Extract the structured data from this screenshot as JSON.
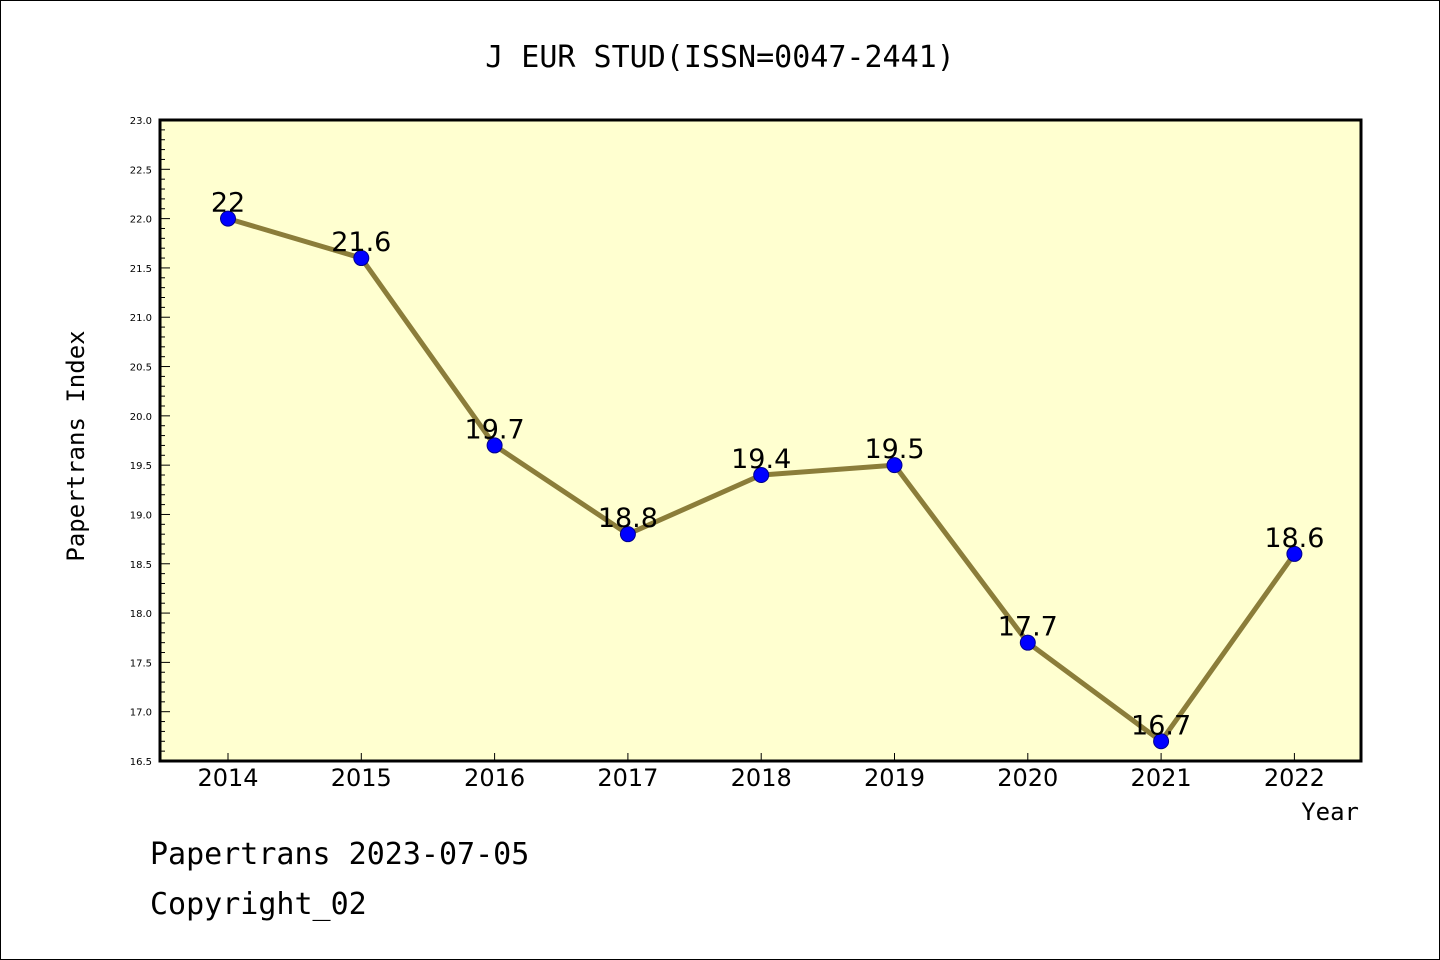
{
  "chart_data": {
    "type": "line",
    "title": "J EUR STUD(ISSN=0047-2441)",
    "xlabel": "Year",
    "ylabel": "Papertrans Index",
    "x": [
      "2014",
      "2015",
      "2016",
      "2017",
      "2018",
      "2019",
      "2020",
      "2021",
      "2022"
    ],
    "y": [
      22,
      21.6,
      19.7,
      18.8,
      19.4,
      19.5,
      17.7,
      16.7,
      18.6
    ],
    "data_labels": [
      "22",
      "21.6",
      "19.7",
      "18.8",
      "19.4",
      "19.5",
      "17.7",
      "16.7",
      "18.6"
    ],
    "ylim": [
      16.5,
      23.0
    ],
    "yticks": [
      "16.5",
      "17.0",
      "17.5",
      "18.0",
      "18.5",
      "19.0",
      "19.5",
      "20.0",
      "20.5",
      "21.0",
      "21.5",
      "22.0",
      "22.5",
      "23.0"
    ],
    "grid": false,
    "legend": "none",
    "colors": {
      "plot_background": "#ffffd0",
      "line": "#8b7d3a",
      "marker": "#0000ff"
    }
  },
  "footer": {
    "line1": "Papertrans 2023-07-05",
    "line2": "Copyright_02"
  }
}
